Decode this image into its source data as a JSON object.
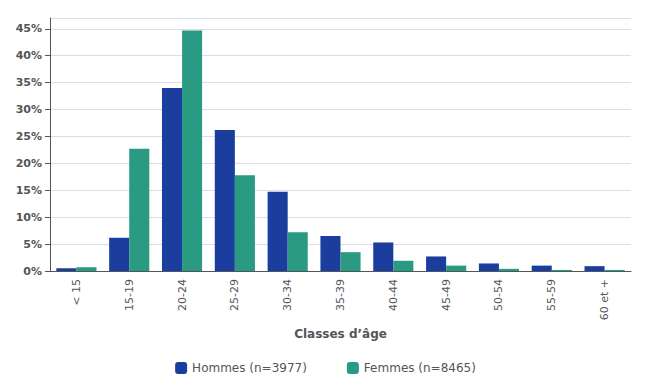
{
  "chart_data": {
    "type": "bar",
    "xlabel": "Classes d’âge",
    "categories": [
      "< 15",
      "15-19",
      "20-24",
      "25-29",
      "30-34",
      "35-39",
      "40-44",
      "45-49",
      "50-54",
      "55-59",
      "60 et +"
    ],
    "series": [
      {
        "name": "Hommes (n=3977)",
        "color": "#1a3d9e",
        "values": [
          0.5,
          6.2,
          34.0,
          26.2,
          14.7,
          6.5,
          5.3,
          2.7,
          1.4,
          1.0,
          0.9
        ]
      },
      {
        "name": "Femmes (n=8465)",
        "color": "#2a9b82",
        "values": [
          0.7,
          22.7,
          44.7,
          17.8,
          7.2,
          3.5,
          1.9,
          1.0,
          0.4,
          0.2,
          0.2
        ]
      }
    ],
    "ylim": [
      0,
      47
    ],
    "yticks": [
      {
        "value": 0,
        "label": "0%"
      },
      {
        "value": 5,
        "label": "5%"
      },
      {
        "value": 10,
        "label": "10%"
      },
      {
        "value": 15,
        "label": "15%"
      },
      {
        "value": 20,
        "label": "20%"
      },
      {
        "value": 25,
        "label": "25%"
      },
      {
        "value": 30,
        "label": "30%"
      },
      {
        "value": 35,
        "label": "35%"
      },
      {
        "value": 40,
        "label": "40%"
      },
      {
        "value": 45,
        "label": "45%"
      }
    ],
    "grid": true,
    "legend": "bottom"
  }
}
